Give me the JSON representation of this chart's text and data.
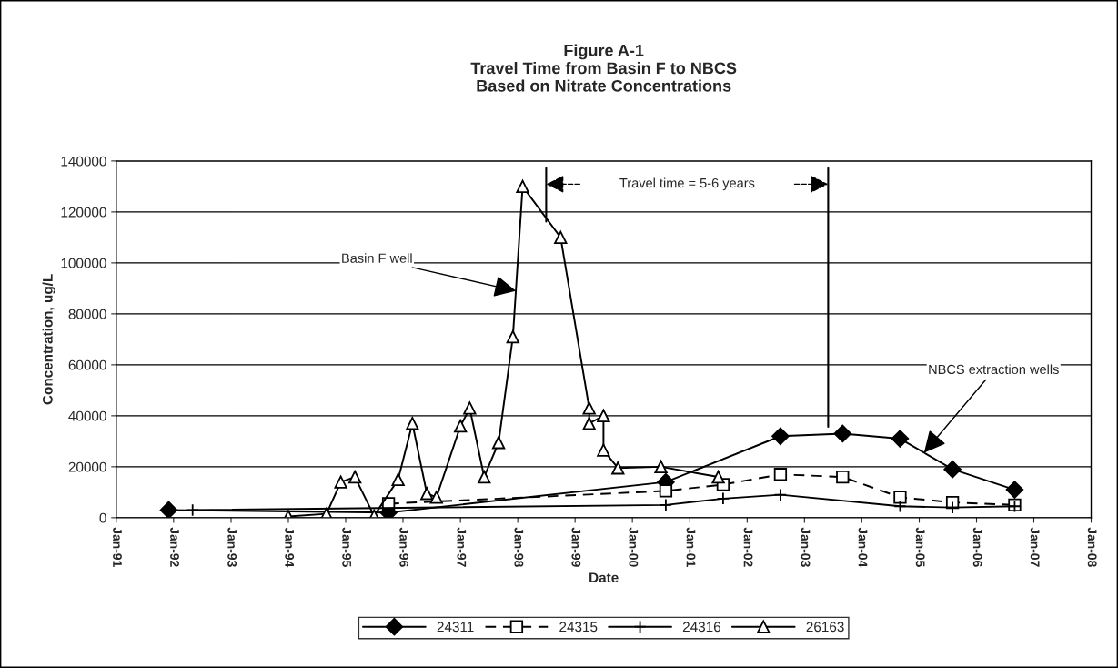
{
  "chart_data": {
    "type": "line",
    "title": "Figure A-1\nTravel Time from Basin F to NBCS\nBased on Nitrate Concentrations",
    "xlabel": "Date",
    "ylabel": "Concentration, ug/L",
    "series": [
      {
        "name": "24311",
        "color": "#000000",
        "marker": "diamond",
        "line_style": "solid",
        "x": [
          "1991-12",
          "1995-10",
          "2000-08",
          "2002-08",
          "2003-09",
          "2004-09",
          "2005-08",
          "2006-09"
        ],
        "values": [
          3000,
          2000,
          14000,
          32000,
          33000,
          31000,
          19000,
          11000
        ]
      },
      {
        "name": "24315",
        "color": "#000000",
        "marker": "square",
        "line_style": "dashed",
        "x": [
          "1995-10",
          "2000-08",
          "2001-08",
          "2002-08",
          "2003-09",
          "2004-09",
          "2005-08",
          "2006-09"
        ],
        "values": [
          5500,
          10500,
          13000,
          17000,
          16000,
          8000,
          6000,
          5000
        ]
      },
      {
        "name": "24316",
        "color": "#000000",
        "marker": "cross",
        "line_style": "solid",
        "x": [
          "1992-05",
          "2000-08",
          "2001-08",
          "2002-08",
          "2004-09",
          "2005-08",
          "2006-09"
        ],
        "values": [
          3000,
          5000,
          7500,
          9000,
          4500,
          4000,
          4500
        ]
      },
      {
        "name": "26163",
        "color": "#000000",
        "marker": "triangle",
        "line_style": "solid",
        "x": [
          "1994-01",
          "1994-09",
          "1994-12",
          "1995-03",
          "1995-07",
          "1995-12",
          "1996-03",
          "1996-06",
          "1996-08",
          "1997-01",
          "1997-03",
          "1997-06",
          "1997-09",
          "1997-12",
          "1998-02",
          "1998-10",
          "1999-04",
          "1999-04",
          "1999-07",
          "1999-07",
          "1999-10",
          "2000-07",
          "2001-07"
        ],
        "values": [
          500,
          1500,
          14000,
          16000,
          700,
          15000,
          37000,
          9500,
          8000,
          36000,
          43000,
          16000,
          29500,
          71000,
          130000,
          110000,
          43000,
          37000,
          40000,
          26500,
          19500,
          20000,
          16000
        ]
      }
    ],
    "xlim": [
      "1991-01",
      "2008-01"
    ],
    "xticks": [
      {
        "value": "1991-01",
        "label": "Jan-91"
      },
      {
        "value": "1992-01",
        "label": "Jan-92"
      },
      {
        "value": "1993-01",
        "label": "Jan-93"
      },
      {
        "value": "1994-01",
        "label": "Jan-94"
      },
      {
        "value": "1995-01",
        "label": "Jan-95"
      },
      {
        "value": "1996-01",
        "label": "Jan-96"
      },
      {
        "value": "1997-01",
        "label": "Jan-97"
      },
      {
        "value": "1998-01",
        "label": "Jan-98"
      },
      {
        "value": "1999-01",
        "label": "Jan-99"
      },
      {
        "value": "2000-01",
        "label": "Jan-00"
      },
      {
        "value": "2001-01",
        "label": "Jan-01"
      },
      {
        "value": "2002-01",
        "label": "Jan-02"
      },
      {
        "value": "2003-01",
        "label": "Jan-03"
      },
      {
        "value": "2004-01",
        "label": "Jan-04"
      },
      {
        "value": "2005-01",
        "label": "Jan-05"
      },
      {
        "value": "2006-01",
        "label": "Jan-06"
      },
      {
        "value": "2007-01",
        "label": "Jan-07"
      },
      {
        "value": "2008-01",
        "label": "Jan-08"
      }
    ],
    "ylim": [
      0,
      140000
    ],
    "yticks": [
      0,
      20000,
      40000,
      60000,
      80000,
      100000,
      120000,
      140000
    ],
    "grid": "y",
    "legend": "bottom",
    "ref_lines": [
      {
        "axis": "x",
        "value": "1998-07"
      },
      {
        "axis": "x",
        "value": "2003-06"
      }
    ],
    "annotations": [
      {
        "text": "Basin F well",
        "x": "1997-12-20",
        "y": 89000
      },
      {
        "text": "NBCS extraction wells",
        "x": "2005-02",
        "y": 25500
      },
      "Travel time = 5-6 years"
    ]
  }
}
